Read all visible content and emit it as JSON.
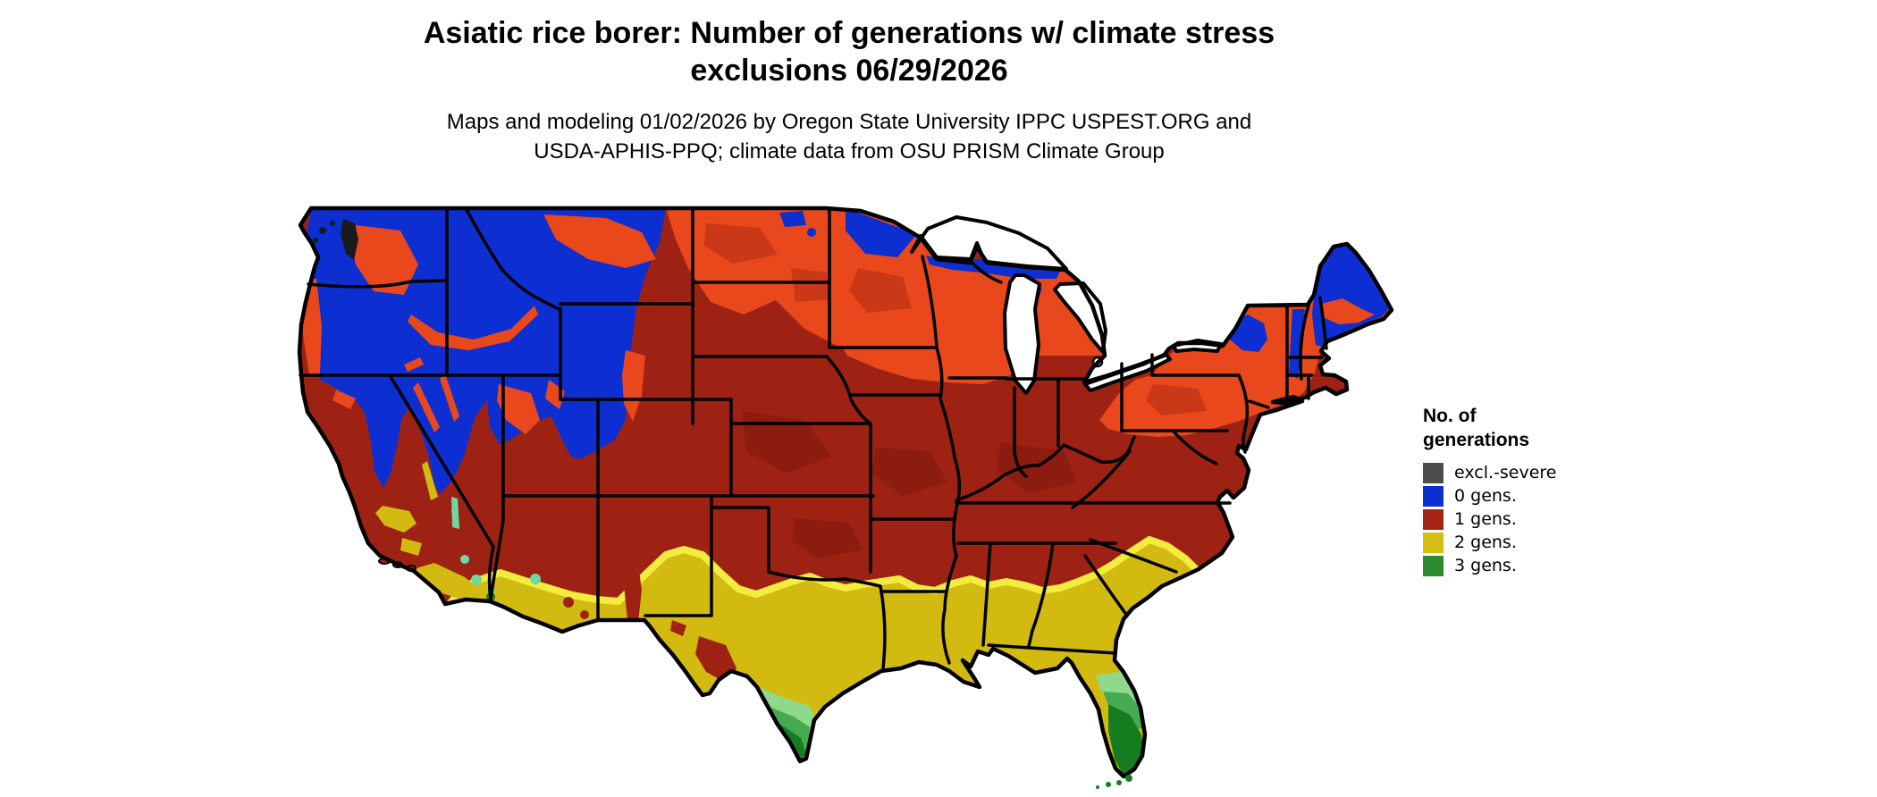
{
  "header": {
    "title_line1": "Asiatic rice borer: Number of generations w/ climate stress",
    "title_line2": "exclusions 06/29/2026",
    "subtitle_line1": "Maps and modeling 01/02/2026 by Oregon State University IPPC USPEST.ORG and",
    "subtitle_line2": "USDA-APHIS-PPQ; climate data from OSU PRISM Climate Group"
  },
  "legend": {
    "title_line1": "No. of",
    "title_line2": "generations",
    "items": [
      {
        "label": "excl.-severe",
        "color": "#4d4d4d"
      },
      {
        "label": "0 gens.",
        "color": "#0d2fd1"
      },
      {
        "label": "1 gens.",
        "color": "#a52415"
      },
      {
        "label": "2 gens.",
        "color": "#d6be10"
      },
      {
        "label": "3 gens.",
        "color": "#2a8a2e"
      }
    ]
  },
  "map": {
    "type": "choropleth-raster-us",
    "colors": {
      "base_red": "#9e2213",
      "red_dark": "#8c1c0f",
      "orange": "#e8481c",
      "orange_dark": "#c93817",
      "blue": "#0d2fd1",
      "gold": "#d2ba10",
      "yellow_bright": "#f2ec3e",
      "green_light": "#8ed98c",
      "green_mid": "#46aa50",
      "green_dark": "#157d1f",
      "teal": "#6fd8a2",
      "excl_black": "#1a1a1a",
      "border": "#000000",
      "water": "#ffffff"
    },
    "regions_summary": [
      {
        "area": "Mountain West, N Minnesota, N Wisconsin, Michigan UP, Adirondacks, N New England, Maine",
        "value": "0 gens."
      },
      {
        "area": "Northern plains, Great Lakes tier, New York, New England fringe",
        "value": "0-1 gens. transition (orange)"
      },
      {
        "area": "Central and eastern US, California valleys, Southwest mid-elevations",
        "value": "1 gens."
      },
      {
        "area": "Texas, Gulf Coast states, southern Atlantic coast, SW deserts",
        "value": "2 gens."
      },
      {
        "area": "South Texas, central and south Florida, lower Colorado River spots",
        "value": "3 gens."
      },
      {
        "area": "Puget Sound / NW coast specks",
        "value": "excl.-severe"
      }
    ]
  }
}
